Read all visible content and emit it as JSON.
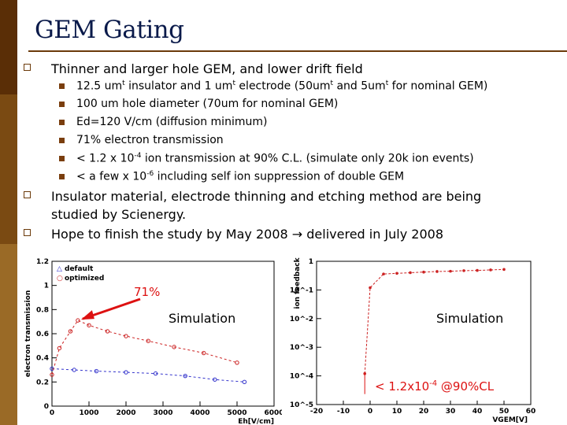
{
  "title": "GEM Gating",
  "bullets": [
    {
      "text": "Thinner and larger hole GEM, and lower drift field",
      "sub": [
        {
          "pre": "12.5 um",
          "sup1": "t",
          "mid": " insulator and 1 um",
          "sup2": "t",
          "mid2": " electrode (50um",
          "sup3": "t",
          "mid3": " and 5um",
          "sup4": "t",
          "post": " for nominal GEM)"
        },
        {
          "text": "100 um hole diameter (70um for nominal GEM)"
        },
        {
          "text": "Ed=120 V/cm (diffusion minimum)"
        },
        {
          "text": "71% electron transmission"
        },
        {
          "pre": "< 1.2 x 10",
          "sup": "-4",
          "post": " ion transmission at 90% C.L. (simulate only 20k ion events)"
        },
        {
          "pre": "< a few x 10",
          "sup": "-6",
          "post": " including self ion suppression of double GEM"
        }
      ]
    },
    {
      "text1": "Insulator material, electrode thinning and etching method are being",
      "text2": "studied by Scienergy."
    },
    {
      "text": "Hope to finish the study by May 2008 → delivered in July 2008"
    }
  ],
  "left_chart": {
    "ylabel": "electron transmission",
    "xlabel": "Eh[V/cm]",
    "legend": [
      "default",
      "optimized"
    ],
    "annotation": "71%",
    "sim_label": "Simulation",
    "colors": {
      "default": "#3333cc",
      "optimized": "#cc2222",
      "annot": "#dd1111"
    }
  },
  "right_chart": {
    "ylabel": "ion feedback",
    "xlabel": "VGEM[V]",
    "sim_label": "Simulation",
    "annotation_pre": "< 1.2x10",
    "annotation_sup": "-4",
    "annotation_post": " @90%CL",
    "colors": {
      "series": "#cc2222",
      "annot": "#dd1111"
    }
  },
  "chart_data": [
    {
      "type": "scatter",
      "xlabel": "Eh[V/cm]",
      "ylabel": "electron transmission",
      "xlim": [
        0,
        6000
      ],
      "ylim": [
        0,
        1.2
      ],
      "x_ticks": [
        0,
        1000,
        2000,
        3000,
        4000,
        5000,
        6000
      ],
      "y_ticks": [
        0,
        0.2,
        0.4,
        0.6,
        0.8,
        1,
        1.2
      ],
      "series": [
        {
          "name": "default",
          "x": [
            0,
            600,
            1200,
            2000,
            2800,
            3600,
            4400,
            5200
          ],
          "y": [
            0.31,
            0.3,
            0.29,
            0.28,
            0.27,
            0.25,
            0.22,
            0.2
          ]
        },
        {
          "name": "optimized",
          "x": [
            0,
            200,
            500,
            700,
            1000,
            1500,
            2000,
            2600,
            3300,
            4100,
            5000
          ],
          "y": [
            0.26,
            0.48,
            0.62,
            0.71,
            0.67,
            0.62,
            0.58,
            0.54,
            0.49,
            0.44,
            0.36
          ]
        }
      ]
    },
    {
      "type": "scatter",
      "xlabel": "VGEM[V]",
      "ylabel": "ion feedback",
      "yscale": "log",
      "xlim": [
        -20,
        60
      ],
      "ylim": [
        1e-05,
        1
      ],
      "x_ticks": [
        -20,
        -10,
        0,
        10,
        20,
        30,
        40,
        50,
        60
      ],
      "y_ticks": [
        "10^-5",
        "10^-4",
        "10^-3",
        "10^-2",
        "10^-1",
        "1"
      ],
      "series": [
        {
          "name": "ion feedback",
          "x": [
            -2,
            0,
            5,
            10,
            15,
            20,
            25,
            30,
            35,
            40,
            45,
            50
          ],
          "y": [
            0.00012,
            0.12,
            0.36,
            0.38,
            0.4,
            0.42,
            0.44,
            0.45,
            0.47,
            0.48,
            0.5,
            0.52
          ]
        }
      ]
    }
  ]
}
